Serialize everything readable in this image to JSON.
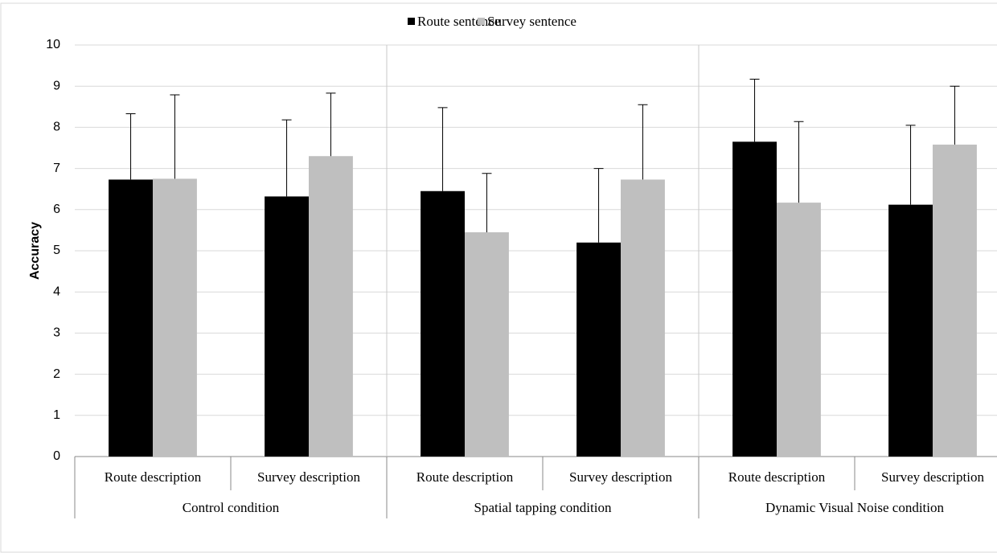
{
  "chart_data": {
    "type": "bar",
    "y_label": "Accuracy",
    "categories": [
      "Route description",
      "Survey description",
      "Route description",
      "Survey description",
      "Route description",
      "Survey description"
    ],
    "groups": [
      "Control condition",
      "Spatial tapping condition",
      "Dynamic Visual Noise condition"
    ],
    "series": [
      {
        "name": "Route sentence",
        "color": "#000000",
        "values": [
          6.73,
          6.32,
          6.45,
          5.2,
          7.65,
          6.12
        ],
        "errors": [
          1.6,
          1.86,
          2.03,
          1.8,
          1.52,
          1.93
        ]
      },
      {
        "name": "Survey sentence",
        "color": "#bfbfbf",
        "values": [
          6.75,
          7.3,
          5.45,
          6.73,
          6.17,
          7.58
        ],
        "errors": [
          2.04,
          1.53,
          1.43,
          1.82,
          1.97,
          1.42
        ]
      }
    ],
    "ylim": [
      0,
      10
    ],
    "yticks": [
      0,
      1,
      2,
      3,
      4,
      5,
      6,
      7,
      8,
      9,
      10
    ],
    "grid": true,
    "legend": "top"
  }
}
